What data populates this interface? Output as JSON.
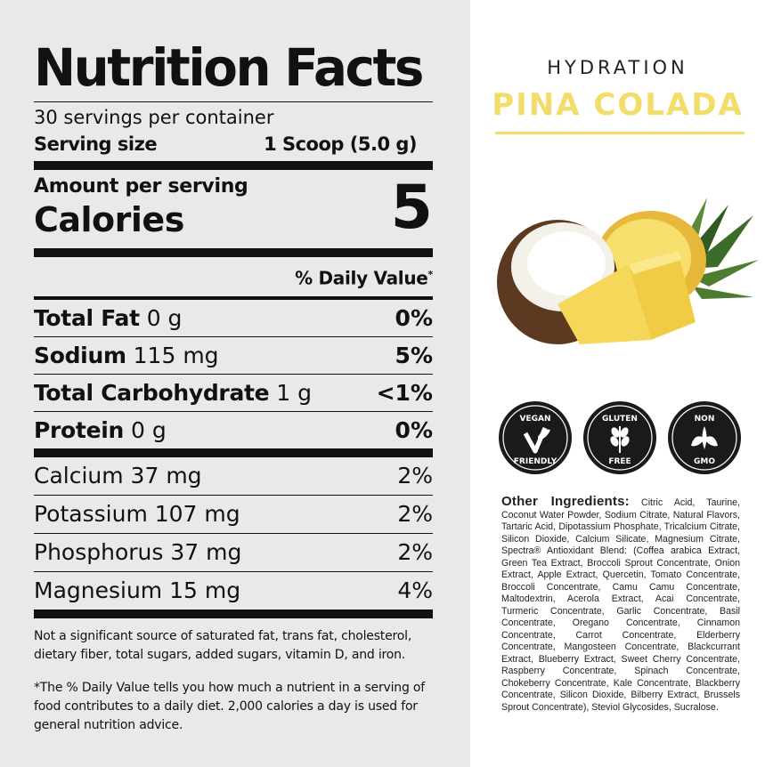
{
  "nutrition": {
    "title": "Nutrition Facts",
    "servings_per_container": "30 servings per container",
    "serving_size_label": "Serving size",
    "serving_size_value": "1 Scoop (5.0 g)",
    "amount_per_serving": "Amount per serving",
    "calories_label": "Calories",
    "calories_value": "5",
    "daily_value_header": "% Daily Value",
    "daily_value_mark": "*",
    "nutrients": [
      {
        "name": "Total Fat",
        "amount": "0 g",
        "dv": "0%"
      },
      {
        "name": "Sodium",
        "amount": "115 mg",
        "dv": "5%"
      },
      {
        "name": "Total Carbohydrate",
        "amount": "1 g",
        "dv": "<1%"
      },
      {
        "name": "Protein",
        "amount": "0 g",
        "dv": "0%"
      }
    ],
    "minerals": [
      {
        "label": "Calcium 37 mg",
        "dv": "2%"
      },
      {
        "label": "Potassium 107 mg",
        "dv": "2%"
      },
      {
        "label": "Phosphorus 37 mg",
        "dv": "2%"
      },
      {
        "label": "Magnesium 15 mg",
        "dv": "4%"
      }
    ],
    "footnote_not_significant": "Not a significant source of saturated fat, trans fat, cholesterol, dietary fiber, total sugars, added sugars, vitamin D, and iron.",
    "footnote_daily_value": "*The % Daily Value tells you how much a nutrient in a serving of food contributes to a daily diet. 2,000 calories a day is used for general nutrition advice."
  },
  "product": {
    "line": "HYDRATION",
    "flavor": "PINA COLADA",
    "accent_color": "#f2dc6a"
  },
  "badges": [
    {
      "icon": "vegan-friendly-icon",
      "top": "VEGAN",
      "bottom": "FRIENDLY"
    },
    {
      "icon": "gluten-free-icon",
      "top": "GLUTEN",
      "bottom": "FREE"
    },
    {
      "icon": "non-gmo-icon",
      "top": "NON",
      "bottom": "GMO"
    }
  ],
  "ingredients": {
    "heading": "Other Ingredients:",
    "text": "Citric Acid, Taurine, Coconut Water Powder, Sodium Citrate, Natural Flavors, Tartaric Acid, Dipotassium Phosphate, Tricalcium Citrate, Silicon Dioxide, Calcium Silicate, Magnesium Citrate, Spectra® Antioxidant Blend: (Coffea arabica Extract, Green Tea Extract, Broccoli Sprout Concentrate, Onion Extract, Apple Extract, Quercetin, Tomato Concentrate, Broccoli Concentrate, Camu Camu Concentrate, Maltodextrin, Acerola Extract, Acai Concentrate, Turmeric Concentrate, Garlic Concentrate, Basil Concentrate, Oregano Concentrate, Cinnamon Concentrate, Carrot Concentrate, Elderberry Concentrate, Mangosteen Concentrate, Blackcurrant Extract, Blueberry Extract, Sweet Cherry Concentrate, Raspberry Concentrate, Spinach Concentrate, Chokeberry Concentrate, Kale Concentrate, Blackberry Concentrate, Silicon Dioxide, Bilberry Extract, Brussels Sprout Concentrate), Steviol Glycosides, Sucralose."
  }
}
